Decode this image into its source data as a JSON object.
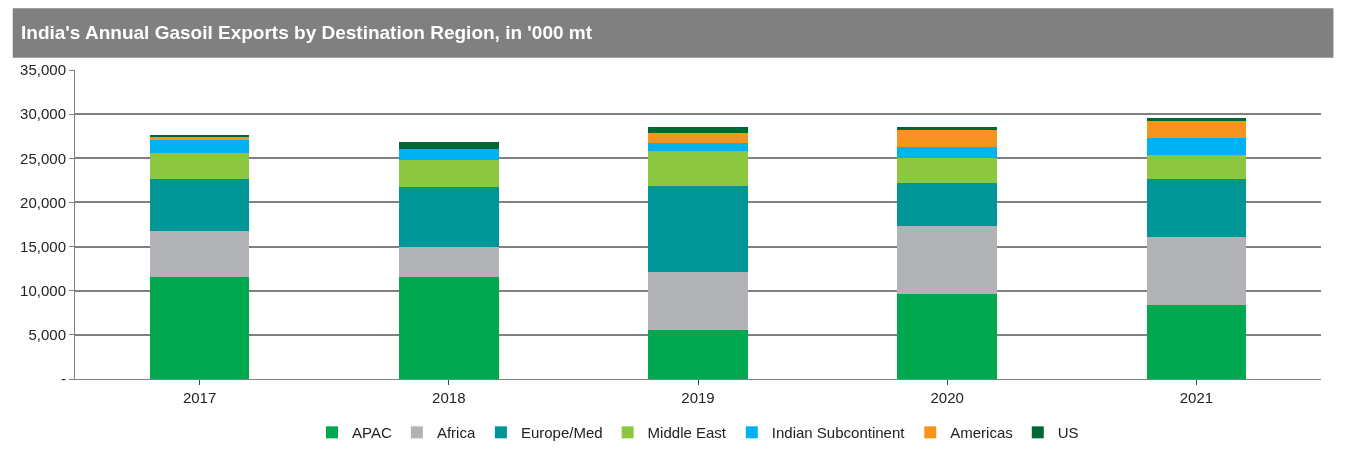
{
  "chart_data": {
    "type": "bar",
    "stacked": true,
    "title": "India's Annual Gasoil Exports by Destination Region, in '000 mt",
    "categories": [
      "2017",
      "2018",
      "2019",
      "2020",
      "2021"
    ],
    "series": [
      {
        "name": "APAC",
        "color": "#00a84f",
        "values": [
          11600,
          11600,
          5500,
          9650,
          8400
        ]
      },
      {
        "name": "Africa",
        "color": "#b1b3b6",
        "values": [
          5150,
          3400,
          6600,
          7650,
          7700
        ]
      },
      {
        "name": "Europe/Med",
        "color": "#009597",
        "values": [
          5950,
          6800,
          9800,
          4900,
          6600
        ]
      },
      {
        "name": "Middle East",
        "color": "#8dc63f",
        "values": [
          2850,
          3000,
          3900,
          2800,
          2700
        ]
      },
      {
        "name": "Indian Subcontinent",
        "color": "#00b2ef",
        "values": [
          1550,
          1200,
          900,
          1300,
          1900
        ]
      },
      {
        "name": "Americas",
        "color": "#f7941d",
        "values": [
          350,
          0,
          1200,
          2000,
          1900
        ]
      },
      {
        "name": "US",
        "color": "#006633",
        "values": [
          150,
          800,
          700,
          200,
          400
        ]
      }
    ],
    "ylim": [
      0,
      35000
    ],
    "yticks": [
      {
        "value": 0,
        "label": "-"
      },
      {
        "value": 5000,
        "label": "5,000"
      },
      {
        "value": 10000,
        "label": "10,000"
      },
      {
        "value": 15000,
        "label": "15,000"
      },
      {
        "value": 20000,
        "label": "20,000"
      },
      {
        "value": 25000,
        "label": "25,000"
      },
      {
        "value": 30000,
        "label": "30,000"
      },
      {
        "value": 35000,
        "label": "35,000"
      }
    ],
    "grid": "y",
    "legend": "bottom"
  }
}
